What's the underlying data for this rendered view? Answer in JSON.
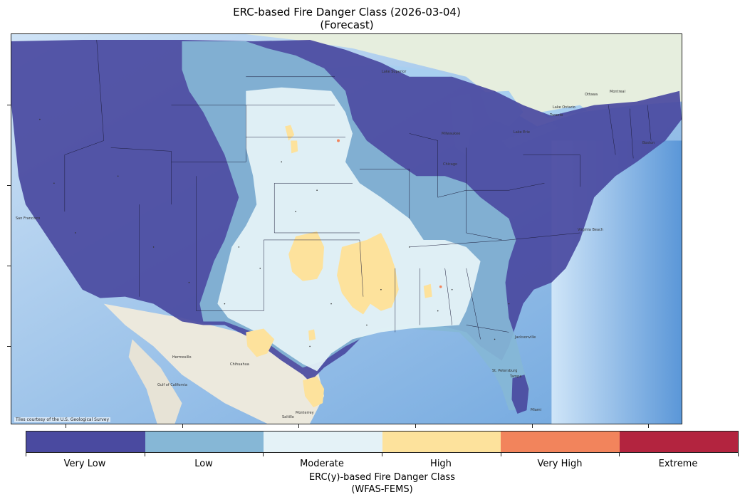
{
  "title": {
    "line1": "ERC-based Fire Danger Class (2026-03-04)",
    "line2": "(Forecast)"
  },
  "map": {
    "attribution": "Tiles courtesy of the U.S. Geological Survey",
    "basemap_labels": [
      "San Francisco",
      "Hermosillo",
      "Chihuahua",
      "Monterrey",
      "Saltillo",
      "Gulf of California",
      "Milwaukee",
      "Chicago",
      "Ottawa",
      "Montreal",
      "Toronto",
      "Boston",
      "Jacksonville",
      "St. Petersburg",
      "Tampa",
      "Miami",
      "Virginia Beach",
      "Lake Ontario",
      "Lake Erie",
      "Lake Superior"
    ]
  },
  "legend": {
    "classes": [
      {
        "label": "Very Low",
        "color": "#4a4aa0"
      },
      {
        "label": "Low",
        "color": "#86b7d6"
      },
      {
        "label": "Moderate",
        "color": "#e4f2f7"
      },
      {
        "label": "High",
        "color": "#fde29c"
      },
      {
        "label": "Very High",
        "color": "#f2845c"
      },
      {
        "label": "Extreme",
        "color": "#b3243f"
      }
    ],
    "title_line1": "ERC(y)-based Fire Danger Class",
    "title_line2": "(WFAS-FEMS)"
  }
}
